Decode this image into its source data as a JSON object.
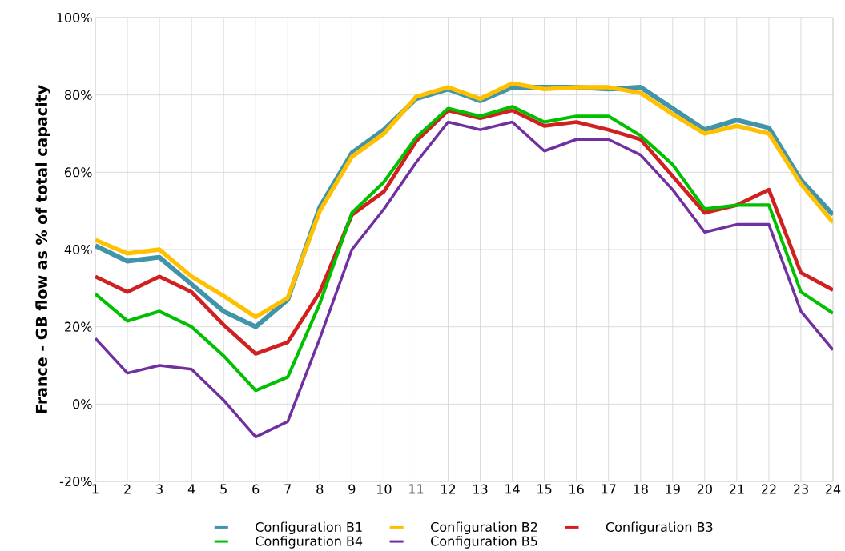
{
  "chart_data": {
    "type": "line",
    "ylabel": "France - GB flow as % of total capacity",
    "categories": [
      "1",
      "2",
      "3",
      "4",
      "5",
      "6",
      "7",
      "8",
      "9",
      "10",
      "11",
      "12",
      "13",
      "14",
      "15",
      "16",
      "17",
      "18",
      "19",
      "20",
      "21",
      "22",
      "23",
      "24"
    ],
    "series": [
      {
        "name": "Configuration B1",
        "color": "#4194aa",
        "values": [
          41,
          37,
          38,
          31,
          24,
          20,
          27,
          51,
          65,
          71,
          79,
          81.5,
          78.5,
          82,
          82,
          82,
          81.5,
          82,
          76.5,
          71,
          73.5,
          71.5,
          58,
          49
        ]
      },
      {
        "name": "Configuration B2",
        "color": "#ffc000",
        "values": [
          42.5,
          39,
          40,
          33,
          28,
          22.5,
          27.5,
          50,
          64,
          70,
          79.5,
          82,
          79,
          83,
          81.5,
          82,
          82,
          80.5,
          75,
          70,
          72,
          70,
          57,
          47
        ]
      },
      {
        "name": "Configuration B3",
        "color": "#d02020",
        "values": [
          33,
          29,
          33,
          29,
          20.5,
          13,
          16,
          29,
          49,
          55,
          68,
          76,
          74,
          76,
          72,
          73,
          71,
          68.5,
          59,
          49.5,
          51.5,
          55.5,
          34,
          29.5
        ]
      },
      {
        "name": "Configuration B4",
        "color": "#00c000",
        "values": [
          28.5,
          21.5,
          24,
          20,
          12.5,
          3.5,
          7,
          26,
          49.5,
          57.5,
          69,
          76.5,
          74.5,
          77,
          73,
          74.5,
          74.5,
          69.5,
          62,
          50.5,
          51.5,
          51.5,
          29,
          23.5
        ]
      },
      {
        "name": "Configuration B5",
        "color": "#7030a0",
        "values": [
          17,
          8,
          10,
          9,
          1,
          -8.5,
          -4.5,
          17,
          40,
          50.5,
          62.5,
          73,
          71,
          73,
          65.5,
          68.5,
          68.5,
          64.5,
          55.5,
          44.5,
          46.5,
          46.5,
          24,
          14
        ]
      }
    ],
    "ylim": [
      -20,
      100
    ],
    "yticks": [
      {
        "value": -20,
        "label": "-20%"
      },
      {
        "value": 0,
        "label": "0%"
      },
      {
        "value": 20,
        "label": "20%"
      },
      {
        "value": 40,
        "label": "40%"
      },
      {
        "value": 60,
        "label": "60%"
      },
      {
        "value": 80,
        "label": "80%"
      },
      {
        "value": 100,
        "label": "100%"
      }
    ],
    "grid": true,
    "legend": "bottom",
    "marker": "none",
    "line_style": "solid"
  }
}
